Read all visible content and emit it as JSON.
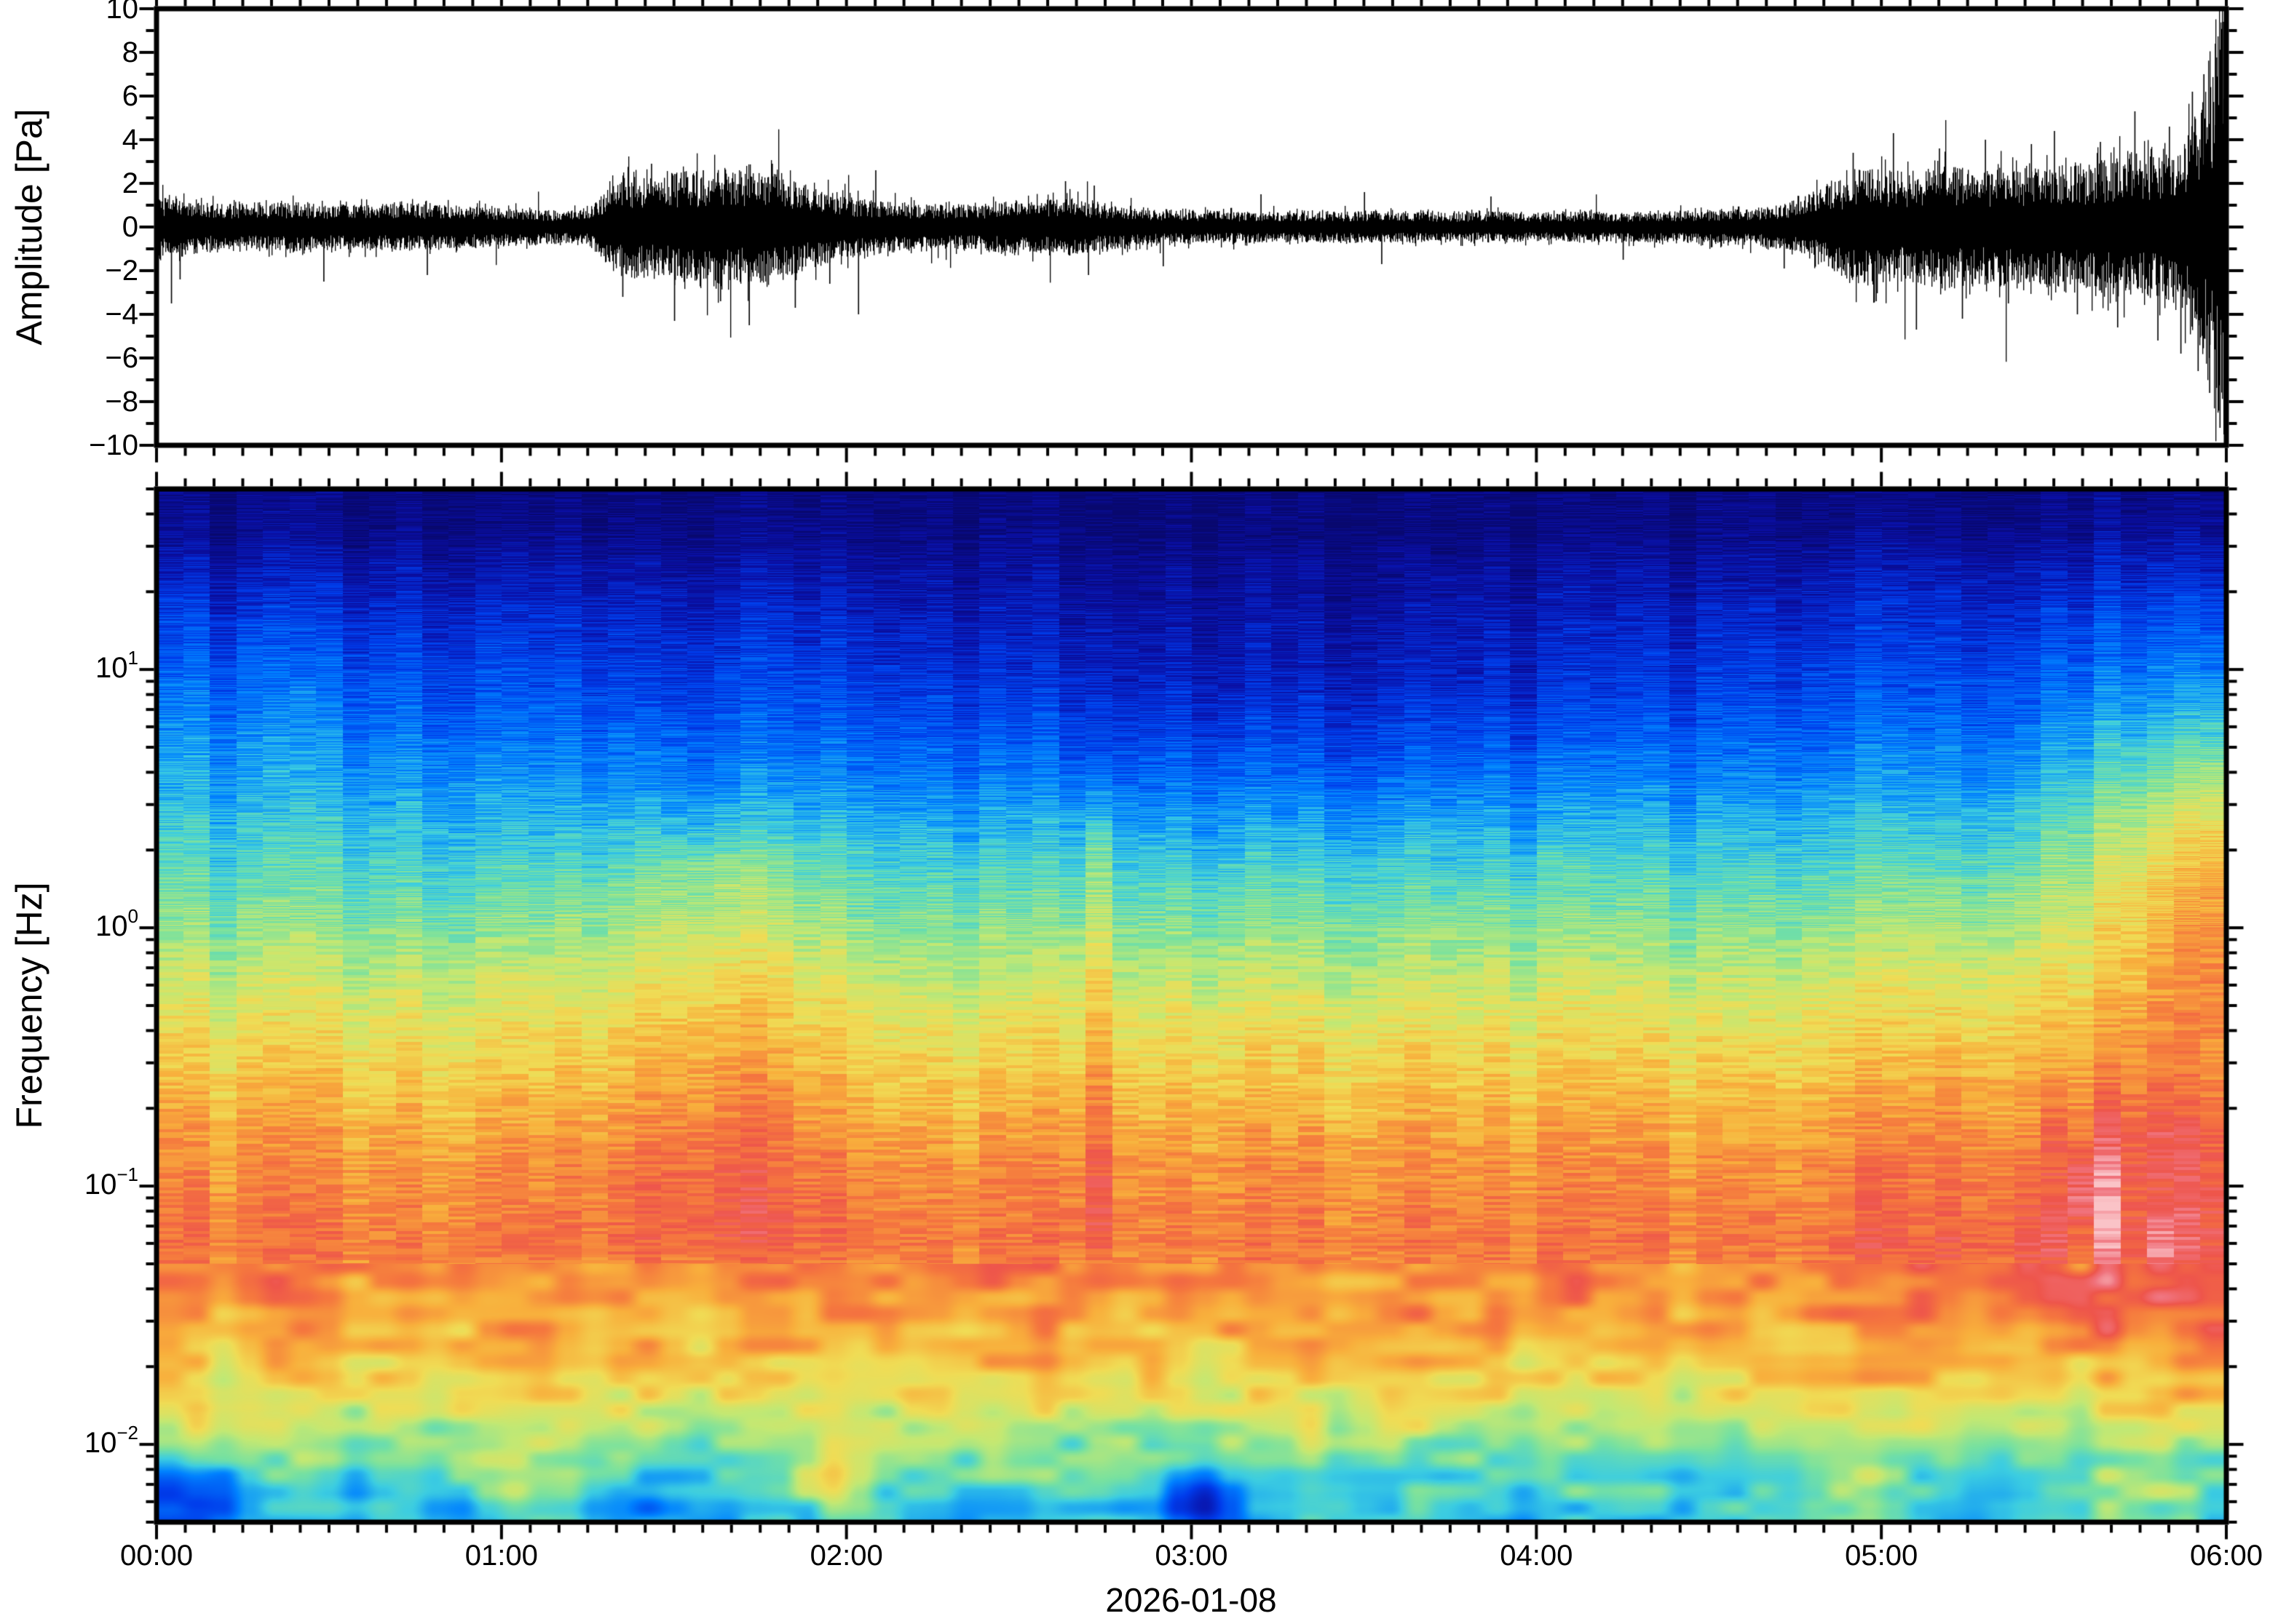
{
  "figure": {
    "background": "#ffffff",
    "frame_color": "#000000"
  },
  "x_axis": {
    "label": "2026-01-08",
    "tick_labels": [
      {
        "hours": 0,
        "label": "00:00"
      },
      {
        "hours": 1,
        "label": "01:00"
      },
      {
        "hours": 2,
        "label": "02:00"
      },
      {
        "hours": 3,
        "label": "03:00"
      },
      {
        "hours": 4,
        "label": "04:00"
      },
      {
        "hours": 5,
        "label": "05:00"
      },
      {
        "hours": 6,
        "label": "06:00"
      }
    ],
    "minor_tick_minutes": 5,
    "range_hours": [
      0,
      6
    ]
  },
  "chart_data": [
    {
      "type": "line",
      "name": "infrasound-waveform",
      "ylabel": "Amplitude [Pa]",
      "ylim": [
        -10,
        10
      ],
      "line_color": "#000000",
      "yticks": [
        {
          "v": 10,
          "label": "10"
        },
        {
          "v": 8,
          "label": "8"
        },
        {
          "v": 6,
          "label": "6"
        },
        {
          "v": 4,
          "label": "4"
        },
        {
          "v": 2,
          "label": "2"
        },
        {
          "v": 0,
          "label": "0"
        },
        {
          "v": -2,
          "label": "−2"
        },
        {
          "v": -4,
          "label": "−4"
        },
        {
          "v": -6,
          "label": "−6"
        },
        {
          "v": -8,
          "label": "−8"
        },
        {
          "v": -10,
          "label": "−10"
        }
      ],
      "minor_ytick_step": 1,
      "noise_seed": 7,
      "envelope_pa": [
        [
          0,
          1.5
        ],
        [
          2,
          1.2
        ],
        [
          5,
          1.1
        ],
        [
          10,
          0.95
        ],
        [
          15,
          0.9
        ],
        [
          25,
          0.95
        ],
        [
          35,
          0.85
        ],
        [
          45,
          0.9
        ],
        [
          55,
          0.8
        ],
        [
          65,
          0.7
        ],
        [
          72,
          0.6
        ],
        [
          76,
          0.7
        ],
        [
          80,
          1.6
        ],
        [
          84,
          2.1
        ],
        [
          88,
          1.8
        ],
        [
          92,
          2.2
        ],
        [
          96,
          2.0
        ],
        [
          100,
          2.3
        ],
        [
          104,
          2.1
        ],
        [
          108,
          2.2
        ],
        [
          112,
          1.8
        ],
        [
          116,
          1.5
        ],
        [
          120,
          1.2
        ],
        [
          126,
          1.0
        ],
        [
          132,
          0.9
        ],
        [
          138,
          0.85
        ],
        [
          144,
          0.9
        ],
        [
          150,
          1.0
        ],
        [
          156,
          1.05
        ],
        [
          160,
          1.1
        ],
        [
          164,
          0.95
        ],
        [
          170,
          0.8
        ],
        [
          176,
          0.7
        ],
        [
          182,
          0.65
        ],
        [
          190,
          0.6
        ],
        [
          200,
          0.58
        ],
        [
          210,
          0.62
        ],
        [
          218,
          0.6
        ],
        [
          226,
          0.55
        ],
        [
          234,
          0.6
        ],
        [
          242,
          0.55
        ],
        [
          250,
          0.6
        ],
        [
          256,
          0.55
        ],
        [
          262,
          0.6
        ],
        [
          268,
          0.62
        ],
        [
          274,
          0.66
        ],
        [
          280,
          0.75
        ],
        [
          284,
          0.9
        ],
        [
          288,
          1.2
        ],
        [
          292,
          1.7
        ],
        [
          296,
          2.1
        ],
        [
          300,
          2.3
        ],
        [
          304,
          2.1
        ],
        [
          308,
          2.3
        ],
        [
          312,
          2.5
        ],
        [
          316,
          2.2
        ],
        [
          320,
          2.1
        ],
        [
          324,
          2.3
        ],
        [
          328,
          2.2
        ],
        [
          332,
          2.5
        ],
        [
          336,
          2.3
        ],
        [
          340,
          2.7
        ],
        [
          344,
          2.9
        ],
        [
          347,
          2.6
        ],
        [
          350,
          3.2
        ],
        [
          352,
          2.9
        ],
        [
          354,
          3.6
        ],
        [
          356,
          4.4
        ],
        [
          357,
          5.0
        ],
        [
          358,
          5.8
        ],
        [
          359,
          6.8
        ],
        [
          360,
          8.2
        ]
      ],
      "spikes_pa": [
        [
          2.5,
          -3.5
        ],
        [
          4,
          -2.4
        ],
        [
          29,
          -2.5
        ],
        [
          47,
          -2.2
        ],
        [
          81,
          -3.2
        ],
        [
          86,
          2.9
        ],
        [
          90,
          -4.3
        ],
        [
          95,
          2.6
        ],
        [
          98,
          -3.4
        ],
        [
          103,
          -4.5
        ],
        [
          107,
          2.9
        ],
        [
          111,
          -3.7
        ],
        [
          117,
          -2.6
        ],
        [
          122,
          -4.0
        ],
        [
          125,
          2.6
        ],
        [
          158,
          2.1
        ],
        [
          162,
          -2.2
        ],
        [
          163,
          1.9
        ],
        [
          175,
          -1.8
        ],
        [
          192,
          1.5
        ],
        [
          210,
          1.6
        ],
        [
          213,
          -1.7
        ],
        [
          232,
          1.4
        ],
        [
          255,
          -1.5
        ],
        [
          283,
          -1.9
        ],
        [
          295,
          3.4
        ],
        [
          299,
          -3.4
        ],
        [
          302,
          4.3
        ],
        [
          306,
          -4.7
        ],
        [
          310,
          3.6
        ],
        [
          314,
          -4.2
        ],
        [
          318,
          4.0
        ],
        [
          322,
          -3.5
        ],
        [
          326,
          3.8
        ],
        [
          330,
          4.4
        ],
        [
          334,
          -4.0
        ],
        [
          338,
          3.9
        ],
        [
          341,
          -4.6
        ],
        [
          344,
          5.3
        ],
        [
          348,
          -5.2
        ],
        [
          350,
          4.6
        ],
        [
          352,
          -5.8
        ],
        [
          354,
          6.2
        ],
        [
          355,
          -6.6
        ],
        [
          356,
          7.0
        ],
        [
          357,
          -7.6
        ],
        [
          358,
          8.4
        ],
        [
          358.8,
          -9.2
        ],
        [
          359.4,
          9.4
        ],
        [
          359.8,
          -9.7
        ]
      ]
    },
    {
      "type": "heatmap",
      "name": "spectrogram",
      "ylabel": "Frequency [Hz]",
      "yscale": "log",
      "ylim_hz": [
        0.005,
        50
      ],
      "yticks": [
        {
          "f": 10,
          "mantissa": "10",
          "exponent": "1"
        },
        {
          "f": 1,
          "mantissa": "10",
          "exponent": "0"
        },
        {
          "f": 0.1,
          "mantissa": "10",
          "exponent": "−1"
        },
        {
          "f": 0.01,
          "mantissa": "10",
          "exponent": "−2"
        }
      ],
      "time_bins": 78,
      "colormap_stops": [
        [
          0.0,
          "#08086e"
        ],
        [
          0.1,
          "#0a0fa5"
        ],
        [
          0.2,
          "#003ceb"
        ],
        [
          0.3,
          "#0082ff"
        ],
        [
          0.4,
          "#3ccde1"
        ],
        [
          0.48,
          "#78e1a0"
        ],
        [
          0.56,
          "#c3e873"
        ],
        [
          0.64,
          "#f0dc55"
        ],
        [
          0.72,
          "#f8af3c"
        ],
        [
          0.8,
          "#f5783e"
        ],
        [
          0.87,
          "#ee554b"
        ],
        [
          0.93,
          "#f0737d"
        ],
        [
          1.0,
          "#fac3c7"
        ]
      ],
      "spectral_profile_hz_value": [
        [
          50,
          0.03
        ],
        [
          35,
          0.045
        ],
        [
          25,
          0.1
        ],
        [
          15,
          0.16
        ],
        [
          8,
          0.22
        ],
        [
          4,
          0.3
        ],
        [
          2,
          0.4
        ],
        [
          1,
          0.5
        ],
        [
          0.5,
          0.6
        ],
        [
          0.25,
          0.68
        ],
        [
          0.12,
          0.76
        ],
        [
          0.06,
          0.8
        ],
        [
          0.03,
          0.74
        ],
        [
          0.015,
          0.62
        ],
        [
          0.009,
          0.48
        ],
        [
          0.006,
          0.4
        ],
        [
          0.005,
          0.38
        ]
      ],
      "features": {
        "bursts": [
          {
            "t_hours": 1.62,
            "sigma_h": 0.3,
            "dv": 0.08,
            "f_lo": 0.08,
            "f_hi": 1.6
          },
          {
            "t_hours": 2.72,
            "sigma_h": 0.06,
            "dv": 0.09,
            "f_lo": 0.08,
            "f_hi": 2.0
          }
        ],
        "quiet_dome": {
          "t_hours": 3.3,
          "sigma_h": 1.05,
          "dv": -0.07,
          "f_center": 9,
          "sigma_dec": 0.55
        },
        "left_high": {
          "t_hours": 0.25,
          "sigma_h": 0.7,
          "dv": 0.045,
          "f_center": 7,
          "sigma_dec": 0.5
        },
        "eruption_onset_hours": 4.75,
        "event_bands": [
          {
            "f_center": 0.08,
            "sigma_dec": 0.8,
            "dv": 0.1
          },
          {
            "f_center": 1.2,
            "sigma_dec": 0.6,
            "dv": 0.08
          },
          {
            "f_center": 15,
            "sigma_dec": 0.5,
            "dv": 0.05
          }
        ],
        "late_ramp": {
          "start_hours": 5.3,
          "f_center": 3,
          "sigma_dec": 0.5,
          "dv": 0.16
        },
        "final_surge": {
          "start_hours": 5.6,
          "f_center": 1.0,
          "sigma_dec": 0.5,
          "dv": 0.12
        },
        "pink_mottle": {
          "f_center": 0.07,
          "sigma_dec": 0.6,
          "dv": 0.12
        },
        "spots": [
          {
            "t": 0.07,
            "f": 0.0065,
            "dv": -0.25
          },
          {
            "t": 3.0,
            "f": 0.006,
            "dv": -0.2
          },
          {
            "t": 1.35,
            "f": 0.0058,
            "dv": -0.12
          },
          {
            "t": 1.95,
            "f": 0.0075,
            "dv": 0.16
          },
          {
            "t": 1.05,
            "f": 0.007,
            "dv": 0.12
          },
          {
            "t": 4.9,
            "f": 0.0068,
            "dv": 0.1
          },
          {
            "t": 5.75,
            "f": 0.006,
            "dv": 0.1
          }
        ]
      }
    }
  ]
}
